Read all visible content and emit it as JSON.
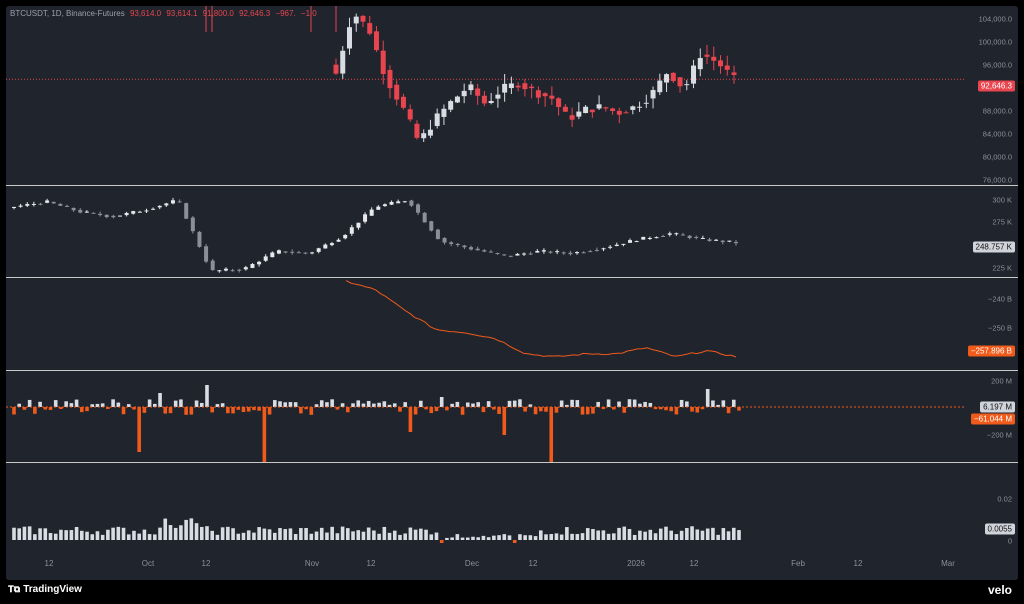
{
  "legend": {
    "symbol": "BTCUSDT, 1D, Binance-Futures",
    "open": "93,614.0",
    "high": "93,614.1",
    "low": "91,800.0",
    "close": "92,646.3",
    "change": "−967.",
    "change_pct": "−1.0"
  },
  "colors": {
    "up": "#d8dce3",
    "down": "#e8454f",
    "orange": "#f05a1a",
    "background": "#20242d"
  },
  "panes": {
    "price": {
      "ticks": [
        "104,000.0",
        "100,000.0",
        "96,000.0",
        "88,000.0",
        "84,000.0",
        "80,000.0",
        "76,000.0"
      ],
      "last_badge": "92,646.3"
    },
    "oi": {
      "ticks": [
        "300 K",
        "275 K",
        "225 K"
      ],
      "last_badge": "248.757 K"
    },
    "cvd": {
      "ticks": [
        "−240 B",
        "−250 B"
      ],
      "last_badge": "−257.896 B"
    },
    "delta": {
      "ticks": [
        "200 M",
        "−200 M"
      ],
      "badge_pos": "6.197 M",
      "badge_neg": "−61.044 M"
    },
    "funding": {
      "ticks": [
        "0.02",
        "0"
      ],
      "last_badge": "0.0055"
    }
  },
  "x_axis": [
    "12",
    "Oct",
    "12",
    "Nov",
    "12",
    "Dec",
    "12",
    "2026",
    "12",
    "Feb",
    "12",
    "Mar"
  ],
  "footer": {
    "brand": "TradingView",
    "watermark": "velo"
  },
  "chart_data": [
    {
      "type": "candlestick",
      "title": "BTCUSDT, 1D, Binance-Futures",
      "yaxis_ticks": [
        76000,
        80000,
        84000,
        88000,
        96000,
        100000,
        104000
      ],
      "ylim": [
        75000,
        105000
      ],
      "last_value": 92646.3,
      "close_path": [
        93614,
        104000,
        101000,
        93000,
        88000,
        82000,
        86000,
        89000,
        91500,
        88500,
        91000,
        92000,
        90500,
        89500,
        86000,
        87500,
        88000,
        87000,
        88000,
        90000,
        94000,
        91000,
        97000,
        95500,
        92646
      ]
    },
    {
      "type": "candlestick",
      "title": "",
      "yaxis_ticks": [
        225000,
        275000,
        300000
      ],
      "last_value": 248757,
      "close_path": [
        285000,
        290000,
        280000,
        275000,
        282000,
        292000,
        220000,
        222000,
        240000,
        238000,
        255000,
        285000,
        292000,
        250000,
        242000,
        235000,
        240000,
        238000,
        244000,
        252000,
        258000,
        252000,
        248757
      ]
    },
    {
      "type": "line",
      "title": "",
      "yaxis_ticks": [
        -240,
        -250
      ],
      "last_value": -257.896,
      "y": [
        -233,
        -236,
        -243,
        -249,
        -250,
        -252,
        -257,
        -258,
        -257,
        -257,
        -255,
        -258,
        -256,
        -257.896
      ]
    },
    {
      "type": "bar",
      "title": "",
      "yaxis_ticks": [
        200,
        -200
      ],
      "last_values": [
        6.197,
        -61.044
      ]
    },
    {
      "type": "bar",
      "title": "",
      "yaxis_ticks": [
        0,
        0.02
      ],
      "last_value": 0.0055
    }
  ]
}
